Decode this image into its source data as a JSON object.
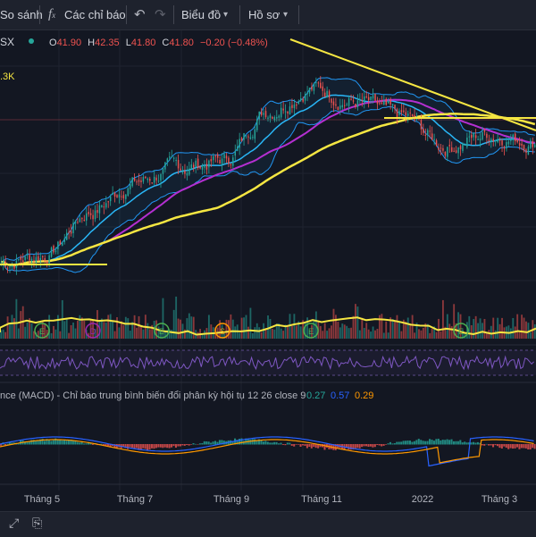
{
  "toolbar": {
    "compare_label": "So sánh",
    "indicators_icon": "fx-icon",
    "indicators_label": "Các chỉ báo",
    "undo_icon": "undo-icon",
    "redo_icon": "redo-icon",
    "chart_type_label": "Biểu đồ",
    "profile_label": "Hồ sơ"
  },
  "symbol": {
    "ticker_fragment": "SX",
    "open_label": "O",
    "open": "41.90",
    "high_label": "H",
    "high": "42.35",
    "low_label": "L",
    "low": "41.80",
    "close_label": "C",
    "close": "41.80",
    "change": "−0.20 (−0.48%)",
    "volume_fragment": ".3K"
  },
  "macd": {
    "title": "nce (MACD) - Chỉ báo trung bình biến đổi phân kỳ hội tụ 12 26 close 9",
    "v1": "0.27",
    "v2": "0.57",
    "v3": "0.29",
    "colors": {
      "v1": "#26a69a",
      "v2": "#2962ff",
      "v3": "#ff9800"
    }
  },
  "event_markers": [
    "E",
    "D",
    "E",
    "S",
    "E",
    "E"
  ],
  "colors": {
    "background": "#131722",
    "up": "#26a69a",
    "down": "#ef5350",
    "ma_long": "#f5e642",
    "ma_mid": "#b42fd1",
    "bollinger": "#2196f3",
    "rsi": "#7e57c2"
  },
  "chart_data": {
    "type": "candlestick",
    "x_tick_labels": [
      "Tháng 5",
      "Tháng 7",
      "Tháng 9",
      "Tháng 11",
      "2022",
      "Tháng 3"
    ],
    "close_series_approx": [
      {
        "t": "Tháng 4",
        "v": 33.5
      },
      {
        "t": "Tháng 5",
        "v": 34.0
      },
      {
        "t": "Tháng 6",
        "v": 37.0
      },
      {
        "t": "Tháng 7",
        "v": 39.0
      },
      {
        "t": "Tháng 8",
        "v": 40.0
      },
      {
        "t": "Tháng 9",
        "v": 40.5
      },
      {
        "t": "Tháng 10",
        "v": 44.0
      },
      {
        "t": "Tháng 11",
        "v": 45.5
      },
      {
        "t": "Tháng 12",
        "v": 44.5
      },
      {
        "t": "2022",
        "v": 43.5
      },
      {
        "t": "Tháng 2",
        "v": 41.5
      },
      {
        "t": "Tháng 3",
        "v": 42.3
      },
      {
        "t": "Tháng 4",
        "v": 41.8
      }
    ],
    "indicators": [
      "Bollinger Bands",
      "MA",
      "Volume",
      "RSI",
      "MACD 12 26 close 9"
    ],
    "grid": true
  }
}
